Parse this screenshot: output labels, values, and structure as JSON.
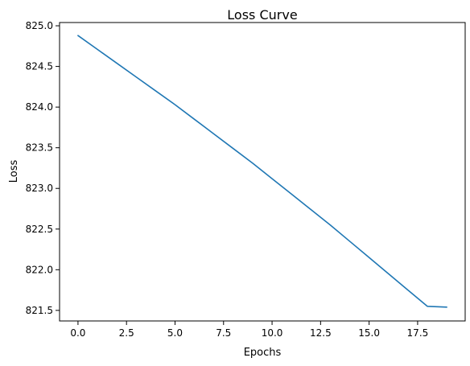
{
  "chart_data": {
    "type": "line",
    "title": "Loss Curve",
    "xlabel": "Epochs",
    "ylabel": "Loss",
    "xlim": [
      -0.95,
      19.95
    ],
    "ylim": [
      821.37,
      825.04
    ],
    "xticks": [
      0.0,
      2.5,
      5.0,
      7.5,
      10.0,
      12.5,
      15.0,
      17.5
    ],
    "xtick_labels": [
      "0.0",
      "2.5",
      "5.0",
      "7.5",
      "10.0",
      "12.5",
      "15.0",
      "17.5"
    ],
    "yticks": [
      821.5,
      822.0,
      822.5,
      823.0,
      823.5,
      824.0,
      824.5,
      825.0
    ],
    "ytick_labels": [
      "821.5",
      "822.0",
      "822.5",
      "823.0",
      "823.5",
      "824.0",
      "824.5",
      "825.0"
    ],
    "grid": false,
    "series": [
      {
        "color": "#1f77b4",
        "x": [
          0,
          1,
          2,
          3,
          4,
          5,
          6,
          7,
          8,
          9,
          10,
          11,
          12,
          13,
          14,
          15,
          16,
          17,
          18,
          19
        ],
        "values": [
          824.88,
          824.71,
          824.54,
          824.37,
          824.2,
          824.03,
          823.85,
          823.67,
          823.49,
          823.31,
          823.12,
          822.93,
          822.74,
          822.55,
          822.35,
          822.15,
          821.95,
          821.75,
          821.55,
          821.54
        ]
      }
    ]
  }
}
